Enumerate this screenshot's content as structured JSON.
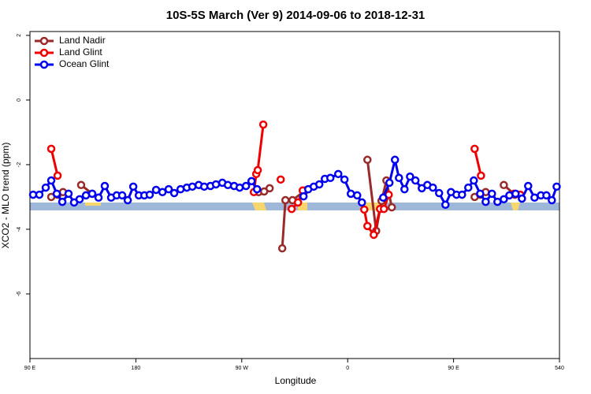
{
  "chart_data": {
    "type": "line",
    "title": "10S-5S March (Ver 9)   2014-09-06 to 2018-12-31",
    "x_label": "Longitude",
    "y_label": "XCO2 - MLO trend (ppm)",
    "xlim": [
      90,
      540
    ],
    "ylim": [
      -8,
      2.12
    ],
    "xticks": [
      {
        "value": 90,
        "label": "90 E"
      },
      180,
      {
        "value": 270,
        "label": "90 W"
      },
      {
        "value": 360,
        "label": "0"
      },
      {
        "value": 450,
        "label": "90 E"
      },
      540
    ],
    "yticks": [
      -6,
      -4,
      -2,
      0,
      2
    ],
    "legend": "top-left",
    "series": [
      {
        "name": "Land Nadir",
        "color": "#992a2a",
        "x": [
          108.1,
          113.5,
          118.1,
          120,
          133.5,
          142.9,
          200,
          284.3,
          289.0,
          293.7,
          296,
          304.4,
          307.1,
          313.1,
          323.8,
          370,
          376.8,
          384.2,
          388.8,
          392.9,
          397.5,
          430,
          467.9,
          472.6,
          477.3,
          482,
          492.7,
          502.1
        ],
        "values": [
          -3.0,
          -2.93,
          -2.85,
          null,
          -2.63,
          -2.9,
          null,
          -2.85,
          -2.83,
          -2.73,
          null,
          -4.59,
          -3.1,
          -3.1,
          -2.8,
          null,
          -1.85,
          -4.05,
          -3.12,
          -2.49,
          -3.32,
          null,
          -3.0,
          -2.93,
          -2.85,
          null,
          -2.63,
          -2.93
        ]
      },
      {
        "name": "Land Glint",
        "color": "#ee0000",
        "x": [
          108.1,
          113.5,
          200,
          280.3,
          282.3,
          283.6,
          288.3,
          290,
          303.1,
          305,
          312.4,
          317.8,
          321.8,
          340,
          374.1,
          376.8,
          382.2,
          387.5,
          390.8,
          394.9,
          430,
          467.9,
          473.3,
          480,
          501.4,
          506.7
        ],
        "values": [
          -1.51,
          -2.34,
          null,
          -2.85,
          -2.29,
          -2.17,
          -0.76,
          null,
          -2.46,
          null,
          -3.37,
          -3.17,
          -2.8,
          null,
          -3.39,
          -3.9,
          -4.17,
          -3.37,
          -3.37,
          -2.93,
          null,
          -1.51,
          -2.34,
          null,
          -2.9,
          -2.93
        ]
      },
      {
        "name": "Ocean Glint",
        "color": "#0000ee",
        "x": [
          92.7,
          98.0,
          103.4,
          108.1,
          112.8,
          117.5,
          122.8,
          127.5,
          132.2,
          137.6,
          142.9,
          148.3,
          153.6,
          159.0,
          163.7,
          168.4,
          173.1,
          177.8,
          182.5,
          187.2,
          191.8,
          197.2,
          202.6,
          207.9,
          212.6,
          218.0,
          223.3,
          228.0,
          233.4,
          238.1,
          243.4,
          248.1,
          253.5,
          258.2,
          263.5,
          268.2,
          273.6,
          278.3,
          283.0,
          299,
          322.5,
          326.5,
          331.2,
          335.9,
          340.6,
          345.3,
          352.0,
          357.3,
          362.7,
          368.1,
          372.1,
          380,
          390.2,
          395.5,
          400.2,
          403.6,
          408.3,
          413.0,
          417.6,
          423.0,
          427.7,
          432.4,
          437.7,
          443.1,
          447.8,
          452.5,
          457.2,
          462.5,
          467.2,
          472.6,
          477.3,
          482.6,
          487.3,
          492.7,
          497.4,
          502.7,
          508.1,
          513.4,
          518.8,
          524.2,
          528.9,
          533.5,
          537.6
        ],
        "values": [
          -2.93,
          -2.93,
          -2.71,
          -2.49,
          -2.9,
          -3.15,
          -2.9,
          -3.17,
          -3.07,
          -2.95,
          -2.9,
          -3.02,
          -2.66,
          -3.02,
          -2.95,
          -2.95,
          -3.1,
          -2.68,
          -2.95,
          -2.95,
          -2.93,
          -2.78,
          -2.85,
          -2.76,
          -2.88,
          -2.76,
          -2.71,
          -2.68,
          -2.63,
          -2.68,
          -2.66,
          -2.61,
          -2.56,
          -2.63,
          -2.66,
          -2.71,
          -2.66,
          -2.51,
          -2.76,
          null,
          -2.98,
          -2.76,
          -2.68,
          -2.61,
          -2.44,
          -2.41,
          -2.29,
          -2.46,
          -2.9,
          -2.95,
          -3.17,
          null,
          -3.02,
          -2.56,
          -1.85,
          -2.41,
          -2.76,
          -2.37,
          -2.49,
          -2.73,
          -2.63,
          -2.71,
          -2.88,
          -3.24,
          -2.85,
          -2.93,
          -2.93,
          -2.71,
          -2.49,
          -2.9,
          -3.15,
          -2.9,
          -3.15,
          -3.07,
          -2.95,
          -2.9,
          -3.05,
          -2.66,
          -3.02,
          -2.95,
          -2.95,
          -3.1,
          -2.68
        ]
      }
    ]
  }
}
